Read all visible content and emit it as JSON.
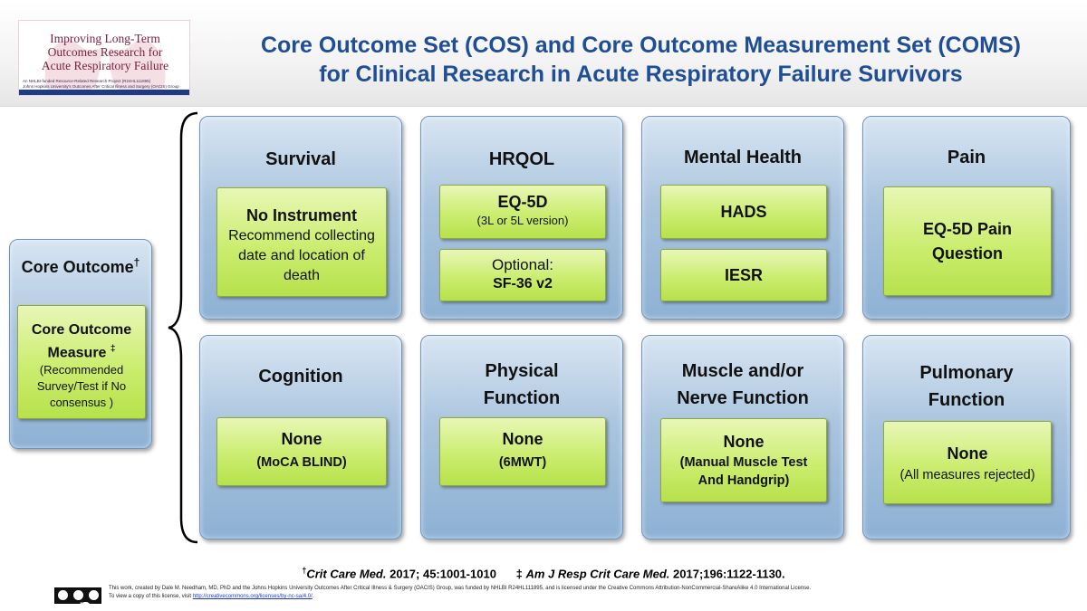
{
  "logo": {
    "title_lines": [
      "Improving Long-Term",
      "Outcomes Research for",
      "Acute Respiratory Failure"
    ],
    "sub_lines": [
      "An NHLBI-funded Resource-Related Research Project (R24HL111895)",
      "Johns Hopkins University's Outcomes After Critical Illness and Surgery (OACIS) Group"
    ]
  },
  "header": {
    "title_line1": "Core Outcome Set (COS) and Core Outcome Measurement Set (COMS)",
    "title_line2": "for Clinical Research in Acute Respiratory Failure Survivors"
  },
  "legend": {
    "title": "Core Outcome",
    "title_mark": "†",
    "measure_line1": "Core Outcome",
    "measure_line2": "Measure",
    "measure_mark": "‡",
    "note_lines": [
      "(Recommended",
      "Survey/Test if No",
      "consensus )"
    ]
  },
  "outcomes": {
    "survival": {
      "title": "Survival",
      "measure": "No Instrument",
      "note_lines": [
        "Recommend collecting",
        "date and location of",
        "death"
      ]
    },
    "hrqol": {
      "title": "HRQOL",
      "measure": "EQ-5D",
      "measure_note": "(3L or 5L version)",
      "optional_label": "Optional:",
      "optional_measure": "SF-36 v2"
    },
    "mental": {
      "title": "Mental Health",
      "measure1": "HADS",
      "measure2": "IESR"
    },
    "pain": {
      "title": "Pain",
      "measure_lines": [
        "EQ-5D Pain",
        "Question"
      ]
    },
    "cognition": {
      "title": "Cognition",
      "measure": "None",
      "note": "(MoCA BLIND)"
    },
    "physical": {
      "title_lines": [
        "Physical",
        "Function"
      ],
      "measure": "None",
      "note": "(6MWT)"
    },
    "muscle": {
      "title_lines": [
        "Muscle and/or",
        "Nerve Function"
      ],
      "measure": "None",
      "note_lines": [
        "(Manual Muscle Test",
        "And Handgrip)"
      ]
    },
    "pulmonary": {
      "title_lines": [
        "Pulmonary",
        "Function"
      ],
      "measure": "None",
      "note": "(All measures rejected)"
    }
  },
  "references": {
    "ref1_mark": "†",
    "ref1_journal": "Crit Care Med.",
    "ref1_details": "2017; 45:1001-1010",
    "ref2_mark": "‡",
    "ref2_journal": "Am J Resp Crit Care Med.",
    "ref2_details": "2017;196:1122-1130."
  },
  "license": {
    "badge_labels": [
      "BY",
      "NC",
      "SA"
    ],
    "line1": "This work, created by Dale M. Needham, MD, PhD and the Johns Hopkins University Outcomes After Critical Illness & Surgery (OACIS) Group, was funded by NHLBI R24HL111895, and is licensed under the Creative Commons Attribution-NonCommercial-ShareAlike 4.0 International License.",
    "line2_prefix": "To view a copy of this license, visit",
    "line2_link": "http://creativecommons.org/licenses/by-nc-sa/4.0/",
    "line2_suffix": "."
  },
  "colors": {
    "title_blue": "#1f4e96",
    "card_blue": "#a9c4de",
    "measure_green": "#c7ec67",
    "logo_maroon": "#7a1f3a"
  }
}
